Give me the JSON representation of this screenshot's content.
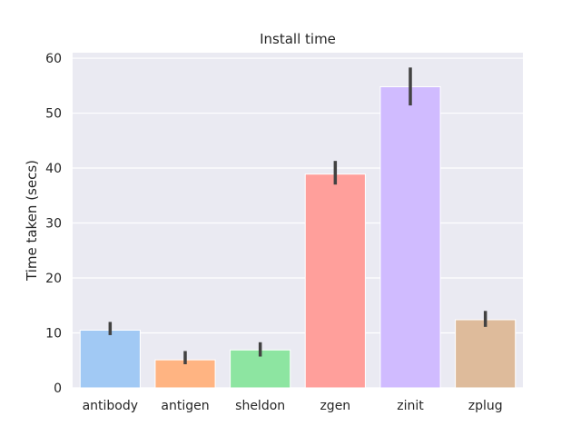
{
  "chart_data": {
    "type": "bar",
    "title": "Install time",
    "xlabel": "",
    "ylabel": "Time taken (secs)",
    "ylim": [
      0,
      61
    ],
    "yticks": [
      0,
      10,
      20,
      30,
      40,
      50,
      60
    ],
    "grid": true,
    "categories": [
      "antibody",
      "antigen",
      "sheldon",
      "zgen",
      "zinit",
      "zplug"
    ],
    "values": [
      10.5,
      5.1,
      6.9,
      38.9,
      54.8,
      12.4
    ],
    "error_low": [
      9.6,
      4.3,
      5.7,
      37.0,
      51.4,
      11.1
    ],
    "error_high": [
      12.0,
      6.7,
      8.3,
      41.3,
      58.3,
      14.0
    ],
    "colors": [
      "#a1c9f4",
      "#ffb482",
      "#8de5a1",
      "#ff9f9b",
      "#d0bbff",
      "#debb9b"
    ],
    "background": "#eaeaf2",
    "error_color": "#424242"
  }
}
